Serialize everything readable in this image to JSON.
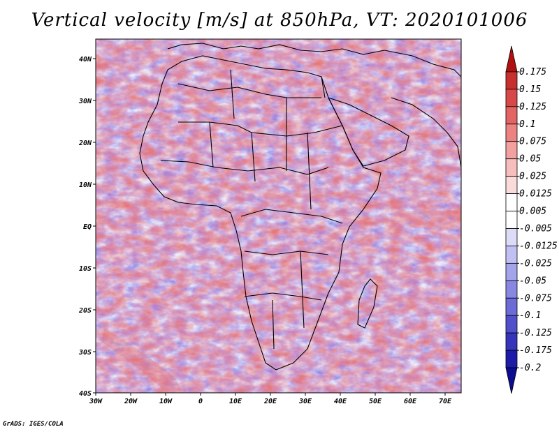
{
  "title": "Vertical velocity [m/s] at 850hPa, VT: 2020101006",
  "credit": "GrADS: IGES/COLA",
  "map": {
    "lat_labels": [
      "40N",
      "30N",
      "20N",
      "10N",
      "EQ",
      "10S",
      "20S",
      "30S",
      "40S"
    ],
    "lon_labels": [
      "30W",
      "20W",
      "10W",
      "0",
      "10E",
      "20E",
      "30E",
      "40E",
      "50E",
      "60E",
      "70E"
    ],
    "extent": {
      "lon_min": -30,
      "lon_max": 75,
      "lat_min": -40,
      "lat_max": 45
    }
  },
  "colorbar": {
    "labels": [
      "0.175",
      "0.15",
      "0.125",
      "0.1",
      "0.075",
      "0.05",
      "0.025",
      "0.0125",
      "0.005",
      "-0.005",
      "-0.0125",
      "-0.025",
      "-0.05",
      "-0.075",
      "-0.1",
      "-0.125",
      "-0.175",
      "-0.2"
    ],
    "colors": [
      "#b01010",
      "#c83030",
      "#d84848",
      "#e46464",
      "#ec8282",
      "#f2a0a0",
      "#f7bebe",
      "#fbdada",
      "#ffffff",
      "#ffffff",
      "#dcdcf8",
      "#c0c0f2",
      "#a4a4ea",
      "#8888e2",
      "#6c6cd8",
      "#5050cc",
      "#3434bc",
      "#1c1ca8",
      "#0c0c90"
    ]
  },
  "colors": {
    "positive_strong": "#d63a3a",
    "positive_weak": "#f3b8b8",
    "negative_weak": "#c4c4f2",
    "negative_strong": "#5a5ad8"
  }
}
